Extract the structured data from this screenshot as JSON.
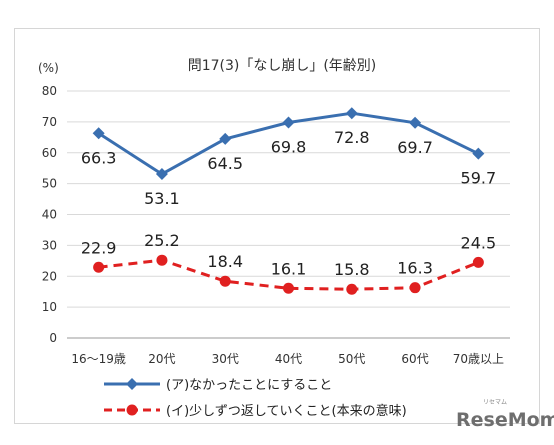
{
  "chart_data": {
    "type": "line",
    "title": "問17(3)「なし崩し」(年齢別)",
    "y_unit_label": "(%)",
    "ylim": [
      0,
      80
    ],
    "yticks": [
      "0",
      "10",
      "20",
      "30",
      "40",
      "50",
      "60",
      "70",
      "80"
    ],
    "categories": [
      "16～19歳",
      "20代",
      "30代",
      "40代",
      "50代",
      "60代",
      "70歳以上"
    ],
    "grid": true,
    "legend_position": "bottom",
    "series": [
      {
        "name": "(ア)なかったことにすること",
        "values": [
          66.3,
          53.1,
          64.5,
          69.8,
          72.8,
          69.7,
          59.7
        ],
        "labels": [
          "66.3",
          "53.1",
          "64.5",
          "69.8",
          "72.8",
          "69.7",
          "59.7"
        ],
        "color": "#3a6fb0",
        "line_style": "solid",
        "marker": "diamond"
      },
      {
        "name": "(イ)少しずつ返していくこと(本来の意味)",
        "values": [
          22.9,
          25.2,
          18.4,
          16.1,
          15.8,
          16.3,
          24.5
        ],
        "labels": [
          "22.9",
          "25.2",
          "18.4",
          "16.1",
          "15.8",
          "16.3",
          "24.5"
        ],
        "color": "#e02020",
        "line_style": "dashed",
        "marker": "circle"
      }
    ]
  },
  "watermark": {
    "logo_text": "ReseMom",
    "small_text": "リセマム"
  }
}
